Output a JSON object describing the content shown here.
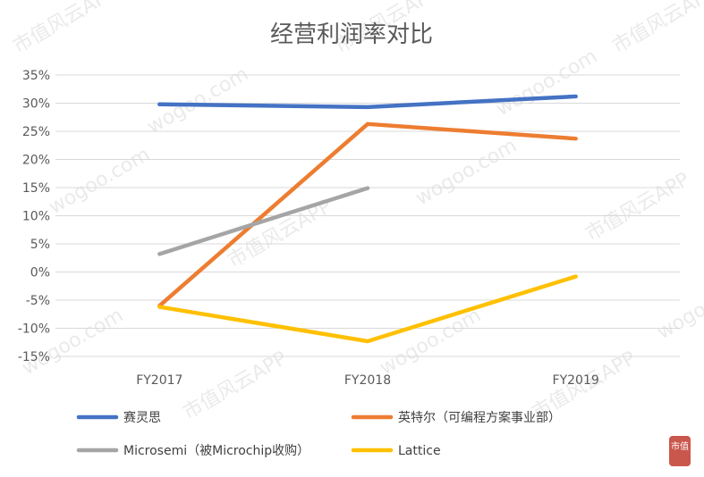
{
  "chart_data": {
    "type": "line",
    "title": "经营利润率对比",
    "categories": [
      "FY2017",
      "FY2018",
      "FY2019"
    ],
    "ylim": [
      -15,
      35
    ],
    "y_ticks": [
      "35%",
      "30%",
      "25%",
      "20%",
      "15%",
      "10%",
      "5%",
      "0%",
      "-5%",
      "-10%",
      "-15%"
    ],
    "y_unit": "%",
    "grid": "horizontal",
    "legend_position": "bottom",
    "series": [
      {
        "name": "赛灵思",
        "color": "#4472C4",
        "values": [
          29.8,
          29.3,
          31.2
        ]
      },
      {
        "name": "英特尔（可编程方案事业部）",
        "color": "#ED7D31",
        "values": [
          -6.0,
          26.3,
          23.7
        ]
      },
      {
        "name": "Microsemi（被Microchip收购）",
        "color": "#A5A5A5",
        "values": [
          3.2,
          14.9,
          null
        ]
      },
      {
        "name": "Lattice",
        "color": "#FFC000",
        "values": [
          -6.2,
          -12.3,
          -0.8
        ]
      }
    ]
  },
  "watermark": {
    "text_a": "市值风云APP",
    "text_b": "wogoo.com"
  },
  "logo": {
    "text": "市值",
    "color": "#c0392b"
  }
}
